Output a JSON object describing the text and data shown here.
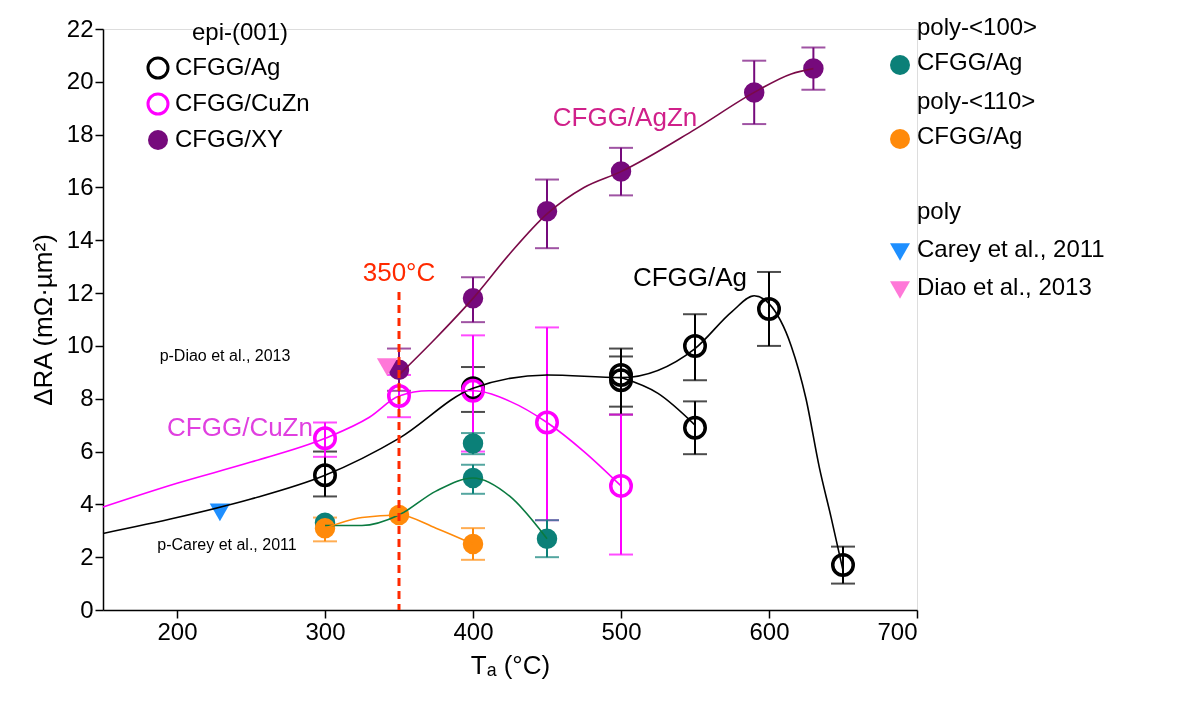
{
  "chart_data": {
    "type": "scatter",
    "xlabel": "Tₐ (°C)",
    "ylabel": "ΔRA (mΩ·µm²)",
    "legend_title": "epi-(001)",
    "xlim": [
      150,
      700
    ],
    "xticks": [
      200,
      300,
      400,
      500,
      600,
      700
    ],
    "ylim": [
      0,
      22
    ],
    "yticks": [
      0,
      2,
      4,
      6,
      8,
      10,
      12,
      14,
      16,
      18,
      20,
      22
    ],
    "grid": false,
    "legend": "top right",
    "series": [
      {
        "name": "CFGG/Ag",
        "marker": "circle",
        "color": "#000000",
        "x": [
          300,
          400,
          500,
          500,
          550,
          550,
          600,
          650
        ],
        "values": [
          5.1,
          8.4,
          8.9,
          8.7,
          10.0,
          6.9,
          11.4,
          1.7
        ],
        "errors": [
          [
            4.3,
            6.0
          ],
          [
            7.5,
            9.2
          ],
          [
            7.7,
            9.9
          ],
          [
            7.4,
            9.6
          ],
          [
            8.7,
            11.2
          ],
          [
            5.9,
            7.9
          ],
          [
            10.0,
            12.8
          ],
          [
            1.0,
            2.4
          ]
        ]
      },
      {
        "name": "CFGG/CuZn",
        "marker": "circle",
        "color": "#ff00ff",
        "x": [
          300,
          350,
          400,
          450,
          500
        ],
        "values": [
          6.5,
          8.1,
          8.3,
          7.1,
          4.7
        ],
        "errors": [
          [
            5.8,
            7.1
          ],
          [
            7.3,
            8.9
          ],
          [
            6.0,
            10.4
          ],
          [
            3.4,
            10.7
          ],
          [
            2.1,
            7.4
          ]
        ]
      },
      {
        "name": "CFGG/XY",
        "marker": "circle",
        "color": "#760a7c",
        "x": [
          350,
          400,
          450,
          500,
          590,
          630
        ],
        "values": [
          9.1,
          11.8,
          15.1,
          16.6,
          19.6,
          20.5
        ],
        "errors": [
          [
            8.3,
            9.9
          ],
          [
            10.9,
            12.6
          ],
          [
            13.7,
            16.3
          ],
          [
            15.7,
            17.5
          ],
          [
            18.4,
            20.8
          ],
          [
            19.7,
            21.3
          ]
        ]
      },
      {
        "name": "CFGG/Ag",
        "marker": "circle",
        "color": "#0b8078",
        "x": [
          300,
          400,
          400,
          450
        ],
        "values": [
          3.3,
          6.3,
          5.0,
          2.7
        ],
        "errors": [
          null,
          [
            5.9,
            6.7
          ],
          [
            4.4,
            5.5
          ],
          [
            2.0,
            3.4
          ]
        ]
      },
      {
        "name": "CFGG/Ag",
        "marker": "circle",
        "color": "#ff8a0a",
        "x": [
          300,
          350,
          400
        ],
        "values": [
          3.1,
          3.6,
          2.5
        ],
        "errors": [
          [
            2.6,
            3.5
          ],
          null,
          [
            1.9,
            3.1
          ]
        ]
      },
      {
        "name": "Carey et al., 2011",
        "marker": "triangle",
        "color": "#1e8fff",
        "x": [
          229
        ],
        "values": [
          3.7
        ]
      },
      {
        "name": "Diao et al., 2013",
        "marker": "triangle",
        "color": "#ff78d8",
        "x": [
          342
        ],
        "values": [
          9.2
        ]
      },
      {
        "type": "line",
        "line_style": "solid",
        "color": "#000000",
        "x": [
          150,
          200,
          250,
          300,
          350,
          400,
          450,
          500,
          550,
          575,
          590,
          600,
          615,
          625,
          634,
          642,
          650
        ],
        "values": [
          2.9,
          3.5,
          4.2,
          5.1,
          6.5,
          8.4,
          8.9,
          8.8,
          9.9,
          11.3,
          11.9,
          11.6,
          10.0,
          8.0,
          5.4,
          3.5,
          1.5
        ]
      },
      {
        "type": "line",
        "line_style": "solid",
        "color": "#000000",
        "x": [
          500,
          525,
          550
        ],
        "values": [
          8.8,
          8.2,
          7.0
        ]
      },
      {
        "type": "line",
        "line_style": "solid",
        "color": "#ff00ff",
        "x": [
          150,
          200,
          250,
          300,
          330,
          350,
          370,
          400,
          425,
          450,
          475,
          500
        ],
        "values": [
          3.9,
          4.8,
          5.6,
          6.5,
          7.3,
          8.1,
          8.3,
          8.3,
          7.9,
          7.1,
          6.0,
          4.7
        ]
      },
      {
        "type": "line",
        "line_style": "solid",
        "color": "#7a0a48",
        "x": [
          350,
          375,
          400,
          425,
          450,
          475,
          500,
          550,
          590,
          615,
          630
        ],
        "values": [
          8.9,
          10.3,
          11.8,
          13.5,
          15.0,
          16.0,
          16.6,
          18.2,
          19.6,
          20.3,
          20.5
        ]
      },
      {
        "type": "line",
        "line_style": "solid",
        "color": "#0a7a40",
        "x": [
          300,
          325,
          350,
          375,
          400,
          425,
          450
        ],
        "values": [
          3.2,
          3.2,
          3.6,
          4.5,
          5.0,
          4.3,
          2.7
        ]
      },
      {
        "type": "line",
        "line_style": "solid",
        "color": "#ff8a0a",
        "x": [
          300,
          325,
          350,
          375,
          400
        ],
        "values": [
          3.1,
          3.5,
          3.6,
          3.1,
          2.5
        ]
      }
    ],
    "ref_lines": [
      {
        "axis": "x",
        "value": 350,
        "label": "350°C",
        "color": "#ff2a00",
        "line_style": "dashed"
      }
    ],
    "annotations": [
      "CFGG/AgZn",
      "CFGG/Ag",
      "CFGG/CuZn",
      "p-Diao et al., 2013",
      "p-Carey et al., 2011",
      "poly-<100>",
      "poly-<110>",
      "poly"
    ]
  }
}
